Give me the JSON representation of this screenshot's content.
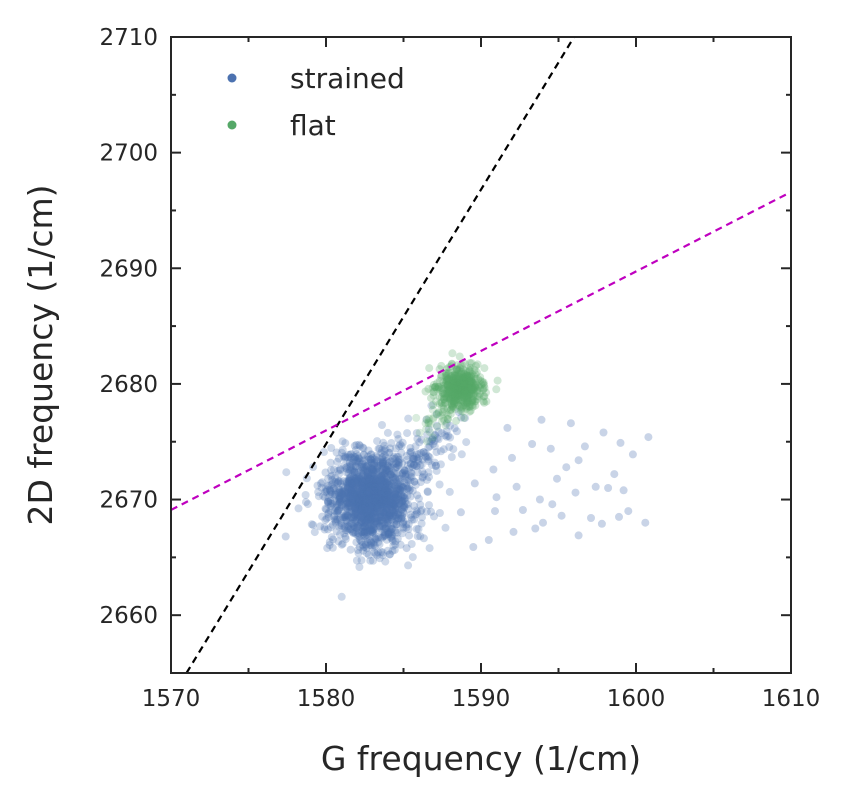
{
  "chart_data": {
    "type": "scatter",
    "xlabel": "G frequency (1/cm)",
    "ylabel": "2D frequency (1/cm)",
    "xlim": [
      1570,
      1610
    ],
    "ylim": [
      2655,
      2710
    ],
    "x_ticks": [
      "1570",
      "1580",
      "1590",
      "1600",
      "1610"
    ],
    "y_ticks": [
      "2660",
      "2670",
      "2680",
      "2690",
      "2700",
      "2710"
    ],
    "grid": false,
    "legend_placement": "top-left",
    "series": [
      {
        "name": "strained",
        "color": "#4c72b0",
        "approx_center": [
          1582.8,
          2670.0
        ],
        "approx_spread": [
          1.4,
          2.0
        ],
        "points_count_estimate": 1500,
        "outliers": [
          [
            1577.4,
            2666.8
          ],
          [
            1585.2,
            2665.8
          ],
          [
            1589.5,
            2665.9
          ],
          [
            1590.5,
            2666.5
          ],
          [
            1592.1,
            2667.2
          ],
          [
            1593.5,
            2667.5
          ],
          [
            1594.0,
            2668.0
          ],
          [
            1595.2,
            2668.6
          ],
          [
            1596.3,
            2666.9
          ],
          [
            1597.8,
            2667.9
          ],
          [
            1598.9,
            2668.5
          ],
          [
            1599.5,
            2669.0
          ],
          [
            1600.6,
            2668.0
          ],
          [
            1591.0,
            2670.2
          ],
          [
            1592.3,
            2671.1
          ],
          [
            1593.8,
            2670.0
          ],
          [
            1594.9,
            2671.8
          ],
          [
            1596.1,
            2670.6
          ],
          [
            1597.4,
            2671.1
          ],
          [
            1598.6,
            2672.2
          ],
          [
            1599.8,
            2673.9
          ],
          [
            1590.8,
            2672.6
          ],
          [
            1592.0,
            2673.6
          ],
          [
            1593.3,
            2674.8
          ],
          [
            1594.5,
            2674.4
          ],
          [
            1595.8,
            2676.6
          ],
          [
            1596.7,
            2674.6
          ],
          [
            1597.9,
            2675.8
          ],
          [
            1599.0,
            2674.9
          ],
          [
            1600.8,
            2675.4
          ],
          [
            1591.7,
            2676.2
          ],
          [
            1593.9,
            2676.9
          ],
          [
            1596.3,
            2673.4
          ],
          [
            1598.2,
            2671.0
          ],
          [
            1592.7,
            2669.1
          ],
          [
            1594.6,
            2669.6
          ],
          [
            1597.1,
            2668.4
          ],
          [
            1599.2,
            2670.8
          ],
          [
            1595.5,
            2672.8
          ],
          [
            1588.7,
            2668.9
          ],
          [
            1589.6,
            2671.4
          ],
          [
            1590.9,
            2669.0
          ]
        ]
      },
      {
        "name": "flat",
        "color": "#55a868",
        "approx_center": [
          1588.6,
          2679.6
        ],
        "approx_spread": [
          0.75,
          0.95
        ],
        "points_count_estimate": 500
      }
    ],
    "lines": [
      {
        "color": "#000000",
        "style": "dashed",
        "from": [
          1571.0,
          2655.0
        ],
        "to": [
          1596.0,
          2710.0
        ]
      },
      {
        "color": "#bf00bf",
        "style": "dashed",
        "from": [
          1570.0,
          2669.1
        ],
        "to": [
          1610.0,
          2696.6
        ]
      }
    ]
  }
}
